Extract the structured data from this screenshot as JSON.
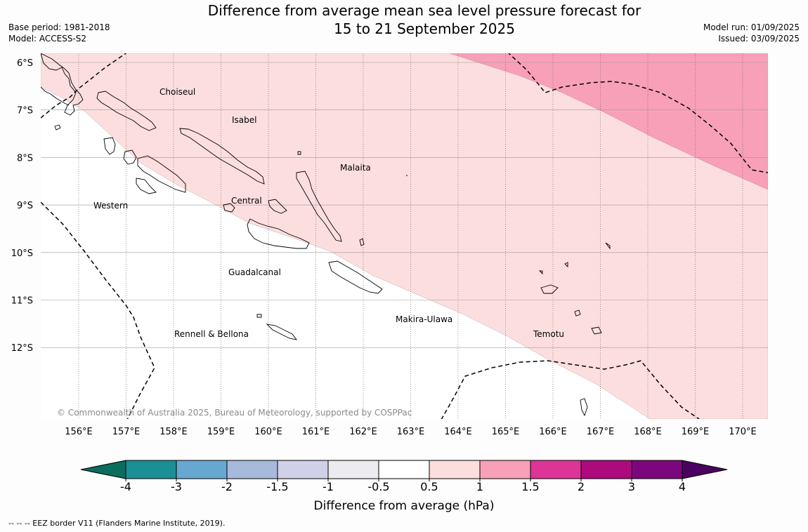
{
  "title_line1": "Difference from average mean sea level pressure forecast for",
  "title_line2": "15 to 21 September 2025",
  "base_period": "Base period: 1981-2018",
  "model": "Model: ACCESS-S2",
  "model_run": "Model run: 01/09/2025",
  "issued": "Issued: 03/09/2025",
  "copyright": "© Commonwealth of Australia 2025, Bureau of Meteorology, supported by COSPPac",
  "footnote": "--  --  -- EEZ border V11 (Flanders Marine Institute, 2019).",
  "lon_labels": [
    "156°E",
    "157°E",
    "158°E",
    "159°E",
    "160°E",
    "161°E",
    "162°E",
    "163°E",
    "164°E",
    "165°E",
    "166°E",
    "167°E",
    "168°E",
    "169°E",
    "170°E"
  ],
  "lat_labels": [
    "6°S",
    "7°S",
    "8°S",
    "9°S",
    "10°S",
    "11°S",
    "12°S"
  ],
  "regions": {
    "choiseul": "Choiseul",
    "isabel": "Isabel",
    "malaita": "Malaita",
    "western": "Western",
    "central": "Central",
    "guadalcanal": "Guadalcanal",
    "makira": "Makira-Ulawa",
    "rennell": "Rennell & Bellona",
    "temotu": "Temotu"
  },
  "colorbar": {
    "label": "Difference from average (hPa)",
    "ticks": [
      "-4",
      "-3",
      "-2",
      "-1.5",
      "-1",
      "-0.5",
      "0.5",
      "1",
      "1.5",
      "2",
      "3",
      "4"
    ],
    "colors": [
      "#1a8f95",
      "#67a8d3",
      "#a7badb",
      "#d0d1e8",
      "#ecebef",
      "#ffffff",
      "#fddede",
      "#f8a0b8",
      "#dd3597",
      "#ad0a7e",
      "#7c077c"
    ],
    "extend_low_color": "#0b6d5f",
    "extend_high_color": "#4a0260"
  },
  "fields": {
    "band_0p5_to_1_color": "#fddede",
    "band_1_to_1p5_color": "#f8a0b8"
  }
}
